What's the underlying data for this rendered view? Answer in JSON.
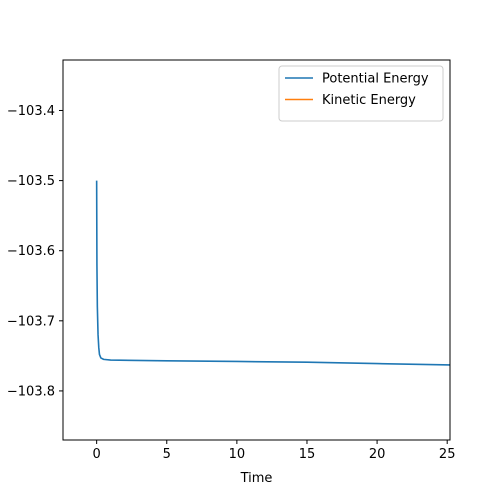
{
  "chart_data": {
    "type": "line",
    "title": "",
    "xlabel": "Time",
    "ylabel": "",
    "xlim": [
      -2.4,
      25.2
    ],
    "ylim": [
      -103.87,
      -103.328
    ],
    "xticks": [
      0,
      5,
      10,
      15,
      20,
      25
    ],
    "yticks": [
      -103.8,
      -103.7,
      -103.6,
      -103.5,
      -103.4
    ],
    "xtick_labels": [
      "0",
      "5",
      "10",
      "15",
      "20",
      "25"
    ],
    "ytick_labels": [
      "−103.8",
      "−103.7",
      "−103.6",
      "−103.5",
      "−103.4"
    ],
    "grid": false,
    "legend_position": "top-right",
    "series": [
      {
        "name": "Potential Energy",
        "color": "#1f77b4",
        "x": [
          0,
          0.02,
          0.05,
          0.1,
          0.15,
          0.2,
          0.3,
          0.5,
          1,
          5,
          10,
          15,
          20,
          25.2
        ],
        "y": [
          -103.5,
          -103.62,
          -103.68,
          -103.72,
          -103.738,
          -103.748,
          -103.753,
          -103.755,
          -103.756,
          -103.757,
          -103.758,
          -103.759,
          -103.761,
          -103.763
        ]
      },
      {
        "name": "Kinetic Energy",
        "color": "#ff7f0e",
        "x": [],
        "y": []
      }
    ]
  }
}
